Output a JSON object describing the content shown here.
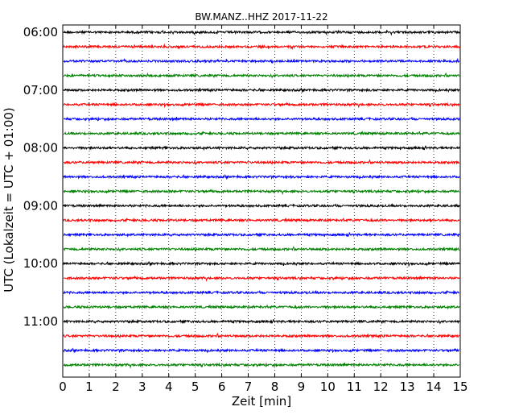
{
  "chart_data": {
    "type": "line",
    "title": "BW.MANZ..HHZ 2017-11-22",
    "xlabel": "Zeit  [min]",
    "ylabel": "UTC (Lokalzeit = UTC + 01:00)",
    "xlim": [
      0,
      15
    ],
    "x_ticks": [
      "0",
      "1",
      "2",
      "3",
      "4",
      "5",
      "6",
      "7",
      "8",
      "9",
      "10",
      "11",
      "12",
      "13",
      "14",
      "15"
    ],
    "y_ticks": [
      "06:00",
      "07:00",
      "08:00",
      "09:00",
      "10:00",
      "11:00"
    ],
    "grid": "vertical dotted lines at each minute",
    "trace_start_times": [
      "06:00",
      "06:15",
      "06:30",
      "06:45",
      "07:00",
      "07:15",
      "07:30",
      "07:45",
      "08:00",
      "08:15",
      "08:30",
      "08:45",
      "09:00",
      "09:15",
      "09:30",
      "09:45",
      "10:00",
      "10:15",
      "10:30",
      "10:45",
      "11:00",
      "11:15",
      "11:30",
      "11:45"
    ],
    "trace_colors": [
      "#000000",
      "#ff0000",
      "#0000ff",
      "#008000"
    ]
  }
}
